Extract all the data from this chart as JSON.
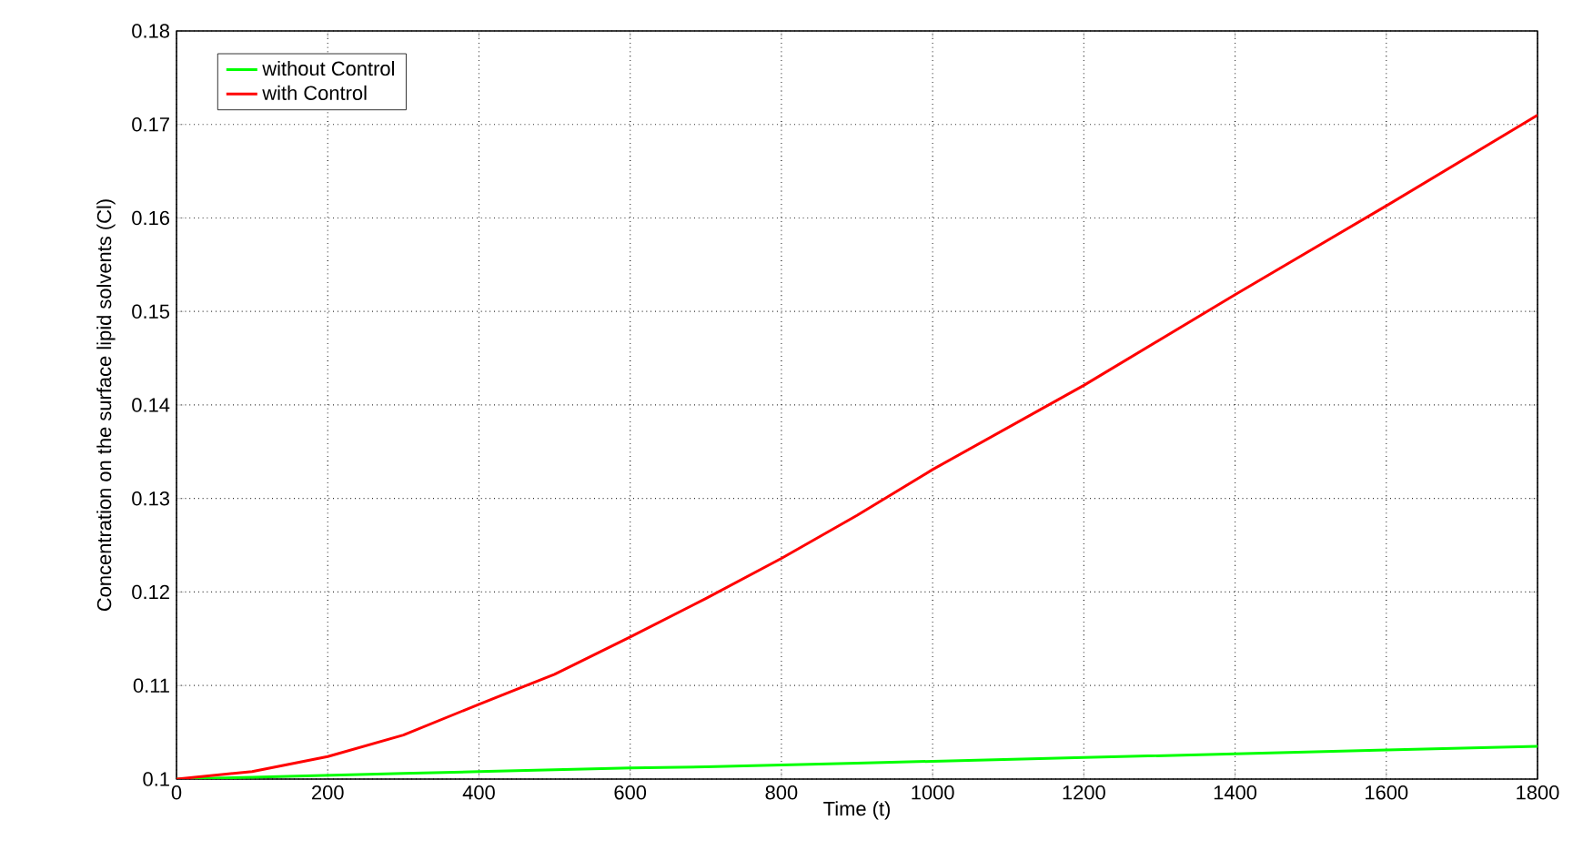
{
  "chart_data": {
    "type": "line",
    "xlabel": "Time (t)",
    "ylabel": "Concentration on the surface lipid solvents (Cl)",
    "xlim": [
      0,
      1800
    ],
    "ylim": [
      0.1,
      0.18
    ],
    "xticks": [
      0,
      200,
      400,
      600,
      800,
      1000,
      1200,
      1400,
      1600,
      1800
    ],
    "yticks": [
      0.1,
      0.11,
      0.12,
      0.13,
      0.14,
      0.15,
      0.16,
      0.17,
      0.18
    ],
    "grid": true,
    "legend": "top left",
    "line_style": "solid",
    "marker": "none",
    "x": [
      0,
      100,
      200,
      300,
      400,
      500,
      600,
      700,
      800,
      900,
      1000,
      1200,
      1400,
      1600,
      1800
    ],
    "series": [
      {
        "name": "without Control",
        "color": "#00ff00",
        "values": [
          0.1,
          0.1002,
          0.1004,
          0.1006,
          0.1008,
          0.101,
          0.1012,
          0.1013,
          0.1015,
          0.1017,
          0.1019,
          0.1023,
          0.1027,
          0.1031,
          0.1035
        ]
      },
      {
        "name": "with Control",
        "color": "#ff0000",
        "values": [
          0.1,
          0.1008,
          0.1024,
          0.1047,
          0.108,
          0.1112,
          0.1152,
          0.1193,
          0.1236,
          0.1282,
          0.1331,
          0.1421,
          0.1518,
          0.1613,
          0.171
        ]
      }
    ]
  }
}
